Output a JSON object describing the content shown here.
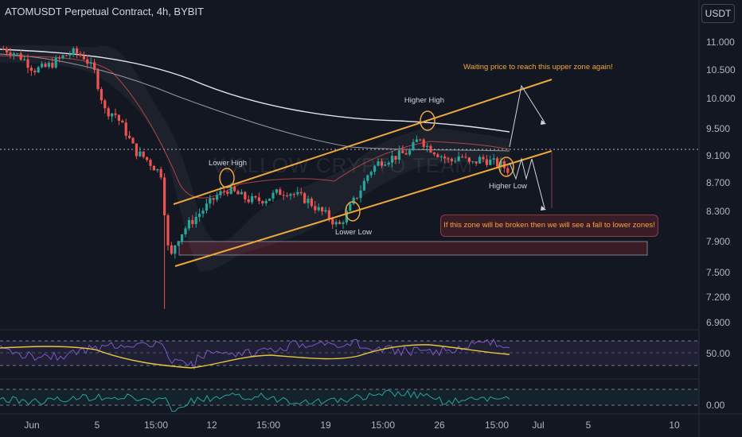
{
  "header": {
    "title": "ATOMUSDT Perpetual Contract, 4h, BYBIT",
    "currency": "USDT"
  },
  "watermark": "WALLOW CRYPTO TEAM",
  "annotations": {
    "lower_high": "Lower High",
    "higher_high": "Higher High",
    "lower_low": "Lower Low",
    "higher_low": "Higher Low",
    "upper_note": "Waiting price to reach this upper zone again!",
    "lower_note": "If this zone will be broken then we will see a fall to lower zones!"
  },
  "colors": {
    "background": "#131722",
    "up": "#26a69a",
    "down": "#ef5350",
    "channel": "#f0a73a",
    "ma_white": "#e0e3eb",
    "rsi": "#7e57c2",
    "rsi_ma": "#e8c53c",
    "osc": "#26a69a",
    "zone": "#3a1c27"
  },
  "chart_data": [
    {
      "type": "candlestick",
      "title": "ATOMUSDT Perpetual Contract, 4h, BYBIT",
      "y_ticks": [
        11.0,
        10.5,
        10.0,
        9.5,
        9.1,
        8.7,
        8.3,
        7.9,
        7.5,
        7.2,
        6.9
      ],
      "y_tick_labels": [
        "11.000",
        "10.500",
        "10.000",
        "9.500",
        "9.100",
        "8.700",
        "8.300",
        "7.900",
        "7.500",
        "7.200",
        "6.900"
      ],
      "x_tick_labels": [
        "Jun",
        "5",
        "15:00",
        "12",
        "15:00",
        "19",
        "15:00",
        "26",
        "15:00",
        "Jul",
        "5",
        "10"
      ],
      "ylim": [
        6.7,
        11.3
      ],
      "price_path": [
        [
          0,
          10.9
        ],
        [
          10,
          10.85
        ],
        [
          20,
          10.75
        ],
        [
          30,
          10.6
        ],
        [
          40,
          10.62
        ],
        [
          50,
          10.7
        ],
        [
          60,
          10.8
        ],
        [
          70,
          10.85
        ],
        [
          80,
          10.78
        ],
        [
          90,
          10.55
        ],
        [
          100,
          10.0
        ],
        [
          110,
          9.95
        ],
        [
          120,
          9.7
        ],
        [
          130,
          9.4
        ],
        [
          140,
          9.3
        ],
        [
          150,
          9.15
        ],
        [
          157,
          9.05
        ],
        [
          160,
          8.1
        ],
        [
          165,
          7.85
        ],
        [
          170,
          8.1
        ],
        [
          180,
          8.3
        ],
        [
          190,
          8.45
        ],
        [
          200,
          8.6
        ],
        [
          210,
          8.75
        ],
        [
          220,
          8.85
        ],
        [
          230,
          8.78
        ],
        [
          240,
          8.7
        ],
        [
          250,
          8.68
        ],
        [
          260,
          8.72
        ],
        [
          270,
          8.8
        ],
        [
          280,
          8.82
        ],
        [
          290,
          8.75
        ],
        [
          300,
          8.68
        ],
        [
          310,
          8.55
        ],
        [
          320,
          8.45
        ],
        [
          330,
          8.3
        ],
        [
          340,
          8.55
        ],
        [
          350,
          8.8
        ],
        [
          360,
          9.1
        ],
        [
          370,
          9.25
        ],
        [
          380,
          9.3
        ],
        [
          390,
          9.35
        ],
        [
          400,
          9.4
        ],
        [
          410,
          9.62
        ],
        [
          415,
          9.5
        ],
        [
          420,
          9.45
        ],
        [
          430,
          9.35
        ],
        [
          440,
          9.25
        ],
        [
          450,
          9.35
        ],
        [
          460,
          9.2
        ],
        [
          470,
          9.3
        ],
        [
          480,
          9.25
        ],
        [
          490,
          9.2
        ],
        [
          500,
          9.1
        ]
      ],
      "channel_upper": [
        [
          7.95,
          8.95
        ],
        [
          10.25,
          7.95
        ]
      ],
      "zone_range": [
        7.77,
        7.95
      ],
      "projection": [
        "10.25",
        "9.45",
        "8.35"
      ]
    },
    {
      "type": "line",
      "name": "RSI",
      "y_ticks": [
        50.0
      ],
      "y_tick_labels": [
        "50.00"
      ]
    },
    {
      "type": "line",
      "name": "Oscillator",
      "y_ticks": [
        0.0
      ],
      "y_tick_labels": [
        "0.00"
      ]
    }
  ]
}
